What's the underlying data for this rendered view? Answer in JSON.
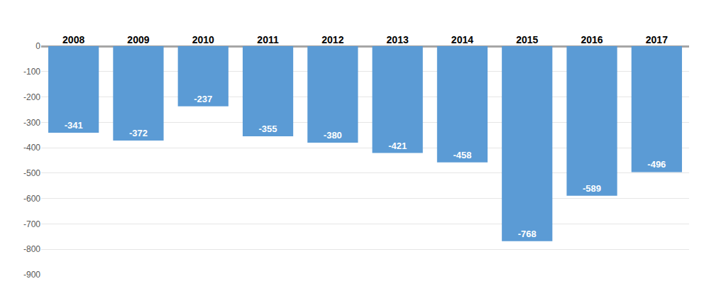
{
  "chart_data": {
    "type": "bar",
    "categories": [
      "2008",
      "2009",
      "2010",
      "2011",
      "2012",
      "2013",
      "2014",
      "2015",
      "2016",
      "2017"
    ],
    "values": [
      -341,
      -372,
      -237,
      -355,
      -380,
      -421,
      -458,
      -768,
      -589,
      -496
    ],
    "color": "#5b9bd5",
    "ylim": [
      -900,
      0
    ],
    "yticks": [
      0,
      -100,
      -200,
      -300,
      -400,
      -500,
      -600,
      -700,
      -800,
      -900
    ],
    "grid": true,
    "data_labels": true
  }
}
